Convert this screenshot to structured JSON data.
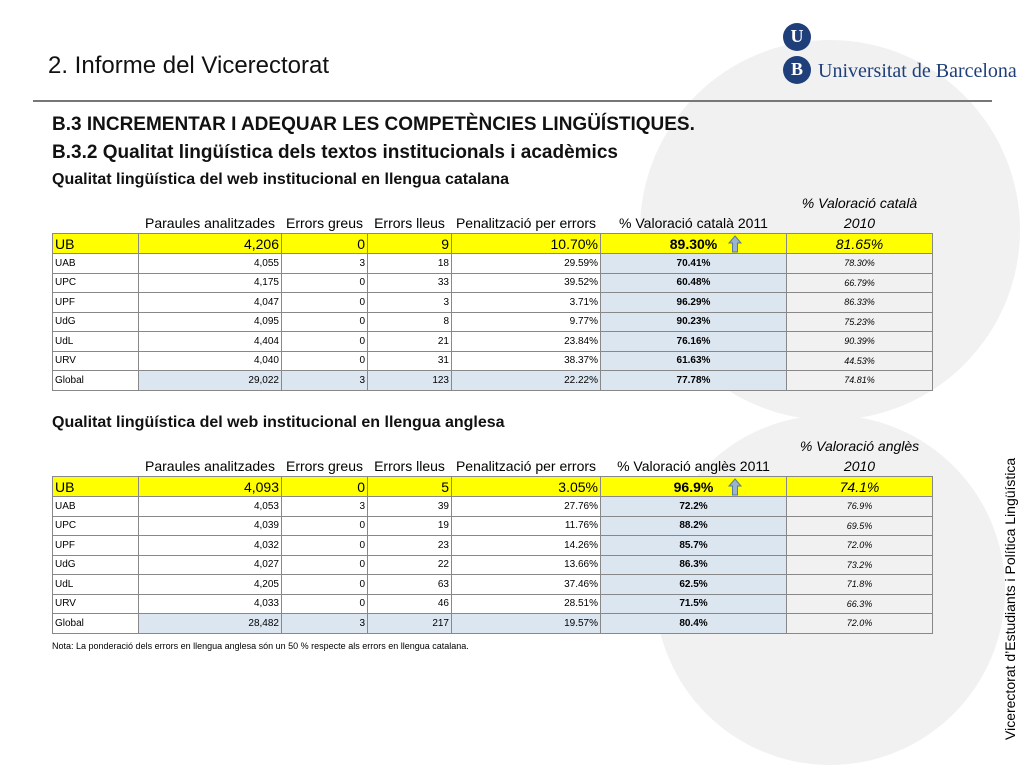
{
  "header": {
    "title": "2. Informe del Vicerectorat",
    "logo_letter_1": "U",
    "logo_letter_2": "B",
    "logo_text": "Universitat de Barcelona"
  },
  "heading_1": "B.3 INCREMENTAR I ADEQUAR LES COMPETÈNCIES LINGÜÍSTIQUES.",
  "heading_2": "B.3.2 Qualitat lingüística dels textos institucionals i acadèmics",
  "tables": [
    {
      "title": "Qualitat lingüística del web institucional en llengua catalana",
      "columns": [
        "",
        "Paraules analitzades",
        "Errors greus",
        "Errors lleus",
        "Penalització per errors",
        "% Valoració català 2011",
        "% Valoració català 2010"
      ],
      "rows": [
        [
          "UB",
          "4,206",
          "0",
          "9",
          "10.70%",
          "89.30%",
          "81.65%"
        ],
        [
          "UAB",
          "4,055",
          "3",
          "18",
          "29.59%",
          "70.41%",
          "78.30%"
        ],
        [
          "UPC",
          "4,175",
          "0",
          "33",
          "39.52%",
          "60.48%",
          "66.79%"
        ],
        [
          "UPF",
          "4,047",
          "0",
          "3",
          "3.71%",
          "96.29%",
          "86.33%"
        ],
        [
          "UdG",
          "4,095",
          "0",
          "8",
          "9.77%",
          "90.23%",
          "75.23%"
        ],
        [
          "UdL",
          "4,404",
          "0",
          "21",
          "23.84%",
          "76.16%",
          "90.39%"
        ],
        [
          "URV",
          "4,040",
          "0",
          "31",
          "38.37%",
          "61.63%",
          "44.53%"
        ],
        [
          "Global",
          "29,022",
          "3",
          "123",
          "22.22%",
          "77.78%",
          "74.81%"
        ]
      ]
    },
    {
      "title": "Qualitat lingüística del web institucional en llengua anglesa",
      "columns": [
        "",
        "Paraules analitzades",
        "Errors greus",
        "Errors lleus",
        "Penalització per errors",
        "% Valoració anglès 2011",
        "% Valoració anglès 2010"
      ],
      "rows": [
        [
          "UB",
          "4,093",
          "0",
          "5",
          "3.05%",
          "96.9%",
          "74.1%"
        ],
        [
          "UAB",
          "4,053",
          "3",
          "39",
          "27.76%",
          "72.2%",
          "76.9%"
        ],
        [
          "UPC",
          "4,039",
          "0",
          "19",
          "11.76%",
          "88.2%",
          "69.5%"
        ],
        [
          "UPF",
          "4,032",
          "0",
          "23",
          "14.26%",
          "85.7%",
          "72.0%"
        ],
        [
          "UdG",
          "4,027",
          "0",
          "22",
          "13.66%",
          "86.3%",
          "73.2%"
        ],
        [
          "UdL",
          "4,205",
          "0",
          "63",
          "37.46%",
          "62.5%",
          "71.8%"
        ],
        [
          "URV",
          "4,033",
          "0",
          "46",
          "28.51%",
          "71.5%",
          "66.3%"
        ],
        [
          "Global",
          "28,482",
          "3",
          "217",
          "19.57%",
          "80.4%",
          "72.0%"
        ]
      ]
    }
  ],
  "note": "Nota: La ponderació dels errors en llengua anglesa són un 50 % respecte als errors en llengua catalana.",
  "side_text": "Vicerectorat d’Estudiants i Política Lingüística"
}
